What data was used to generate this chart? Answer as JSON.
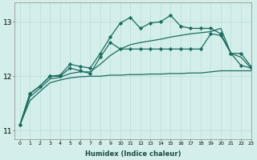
{
  "background_color": "#d4efeb",
  "grid_color": "#b8ddd8",
  "line_color": "#1a6b5e",
  "xlabel": "Humidex (Indice chaleur)",
  "xlim": [
    -0.5,
    23
  ],
  "ylim": [
    10.85,
    13.35
  ],
  "yticks": [
    11,
    12,
    13
  ],
  "xticks": [
    0,
    1,
    2,
    3,
    4,
    5,
    6,
    7,
    8,
    9,
    10,
    11,
    12,
    13,
    14,
    15,
    16,
    17,
    18,
    19,
    20,
    21,
    22,
    23
  ],
  "series": [
    {
      "x": [
        0,
        1,
        2,
        3,
        4,
        5,
        6,
        7,
        8,
        9,
        10,
        11,
        12,
        13,
        14,
        15,
        16,
        17,
        18,
        19,
        20,
        21,
        22,
        23
      ],
      "y": [
        11.1,
        11.68,
        11.82,
        12.0,
        12.02,
        12.22,
        12.18,
        12.15,
        12.42,
        12.72,
        12.98,
        13.08,
        12.88,
        12.98,
        13.0,
        13.12,
        12.92,
        12.88,
        12.88,
        12.88,
        12.78,
        12.42,
        12.42,
        12.18
      ],
      "marker": "D",
      "markersize": 2.2,
      "linewidth": 0.9
    },
    {
      "x": [
        0,
        1,
        2,
        3,
        4,
        5,
        6,
        7,
        8,
        9,
        10,
        11,
        12,
        13,
        14,
        15,
        16,
        17,
        18,
        19,
        20,
        21,
        22,
        23
      ],
      "y": [
        11.1,
        11.68,
        11.82,
        12.0,
        12.0,
        12.15,
        12.1,
        12.05,
        12.35,
        12.62,
        12.5,
        12.5,
        12.5,
        12.5,
        12.5,
        12.5,
        12.5,
        12.5,
        12.5,
        12.78,
        12.75,
        12.42,
        12.2,
        12.15
      ],
      "marker": "D",
      "markersize": 2.2,
      "linewidth": 0.9
    },
    {
      "x": [
        0,
        1,
        2,
        3,
        4,
        5,
        6,
        7,
        8,
        9,
        10,
        11,
        12,
        13,
        14,
        15,
        16,
        17,
        18,
        19,
        20,
        21,
        22,
        23
      ],
      "y": [
        11.1,
        11.62,
        11.78,
        11.95,
        11.98,
        12.05,
        12.08,
        12.08,
        12.22,
        12.38,
        12.5,
        12.58,
        12.62,
        12.65,
        12.68,
        12.72,
        12.75,
        12.78,
        12.8,
        12.82,
        12.88,
        12.42,
        12.35,
        12.15
      ],
      "marker": null,
      "markersize": 0,
      "linewidth": 0.9
    },
    {
      "x": [
        0,
        1,
        2,
        3,
        4,
        5,
        6,
        7,
        8,
        9,
        10,
        11,
        12,
        13,
        14,
        15,
        16,
        17,
        18,
        19,
        20,
        21,
        22,
        23
      ],
      "y": [
        11.1,
        11.55,
        11.72,
        11.88,
        11.93,
        11.97,
        11.99,
        12.0,
        12.0,
        12.02,
        12.02,
        12.03,
        12.03,
        12.04,
        12.04,
        12.05,
        12.05,
        12.06,
        12.06,
        12.08,
        12.1,
        12.1,
        12.1,
        12.1
      ],
      "marker": null,
      "markersize": 0,
      "linewidth": 0.9
    }
  ]
}
